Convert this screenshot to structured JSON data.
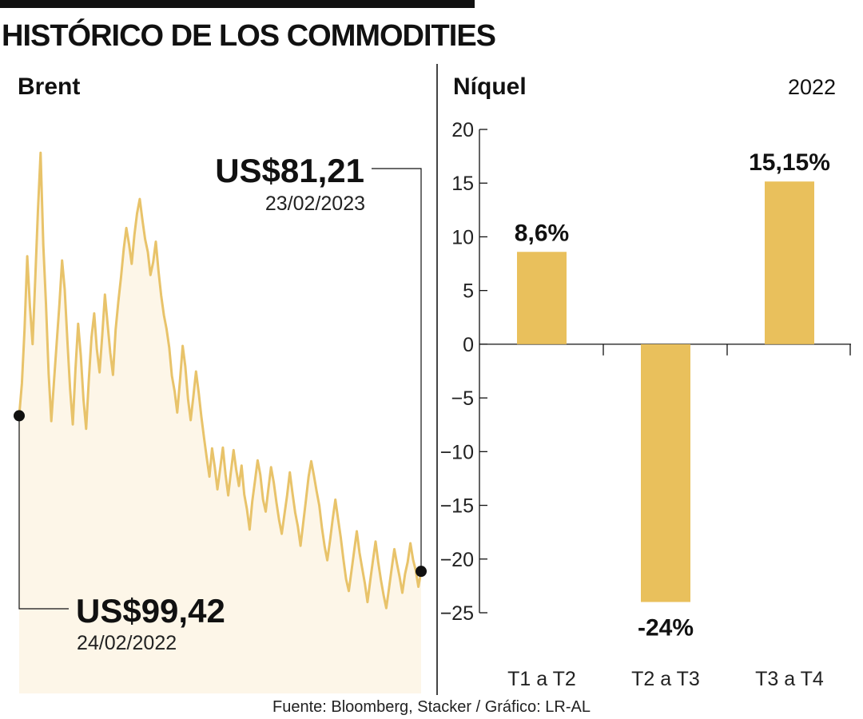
{
  "title": "HISTÓRICO DE LOS COMMODITIES",
  "source": "Fuente: Bloomberg, Stacker / Gráfico: LR-AL",
  "colors": {
    "bar": "#e9c05c",
    "line": "#e8c36a",
    "area": "#fdf6e8",
    "ink": "#111111"
  },
  "chart_data": [
    {
      "type": "area",
      "title": "Brent",
      "series": [
        {
          "values": [
            99.42,
            103.2,
            109.5,
            118.1,
            112.3,
            107.8,
            115.4,
            123.5,
            130.2,
            119.4,
            112.6,
            104.3,
            98.8,
            103.5,
            107.9,
            112.4,
            117.6,
            114.2,
            108.1,
            102.6,
            98.4,
            104.8,
            110.2,
            106.5,
            101.3,
            97.9,
            103.7,
            108.6,
            111.4,
            107.2,
            104.5,
            108.9,
            113.6,
            110.1,
            106.8,
            104.2,
            109.5,
            112.8,
            115.6,
            118.9,
            121.4,
            119.5,
            117.2,
            120.6,
            123.1,
            124.8,
            122.3,
            120.1,
            118.6,
            115.9,
            117.4,
            119.8,
            116.3,
            113.5,
            111.2,
            109.6,
            107.4,
            104.1,
            102.3,
            99.8,
            103.5,
            107.6,
            105.2,
            101.4,
            98.9,
            101.7,
            104.6,
            102.1,
            99.3,
            96.8,
            94.5,
            92.3,
            95.6,
            93.4,
            90.8,
            93.2,
            95.7,
            92.6,
            90.1,
            92.8,
            95.4,
            93.1,
            91.2,
            93.6,
            90.2,
            88.5,
            86.1,
            89.4,
            91.8,
            94.2,
            92.5,
            89.6,
            88.2,
            90.9,
            93.4,
            91.6,
            89.3,
            87.2,
            85.6,
            87.9,
            90.1,
            92.8,
            90.4,
            88.1,
            86.5,
            84.2,
            86.9,
            89.5,
            92.3,
            94.1,
            92.4,
            90.6,
            88.9,
            86.3,
            84.1,
            82.5,
            84.8,
            87.3,
            89.6,
            87.4,
            85.2,
            82.6,
            80.3,
            78.9,
            81.2,
            83.6,
            85.9,
            83.4,
            81.6,
            79.8,
            77.6,
            80.1,
            82.4,
            84.7,
            82.3,
            80.2,
            78.4,
            76.9,
            79.2,
            81.5,
            83.8,
            82.1,
            80.5,
            78.7,
            80.9,
            82.3,
            84.5,
            82.6,
            81.3,
            79.4,
            81.21
          ]
        }
      ],
      "ylim": [
        70,
        135
      ],
      "annotations": [
        {
          "label": "US$81,21",
          "date": "23/02/2023"
        },
        {
          "label": "US$99,42",
          "date": "24/02/2022"
        }
      ]
    },
    {
      "type": "bar",
      "title": "Níquel",
      "subtitle": "2022",
      "categories": [
        "T1 a T2",
        "T2 a T3",
        "T3 a T4"
      ],
      "values": [
        8.6,
        -24,
        15.15
      ],
      "value_labels": [
        "8,6%",
        "-24%",
        "15,15%"
      ],
      "yticks": [
        "20",
        "15",
        "10",
        "5",
        "0",
        "-5",
        "-10",
        "-15",
        "-20",
        "-25"
      ],
      "ylim": [
        -25,
        20
      ],
      "grid": false
    }
  ]
}
